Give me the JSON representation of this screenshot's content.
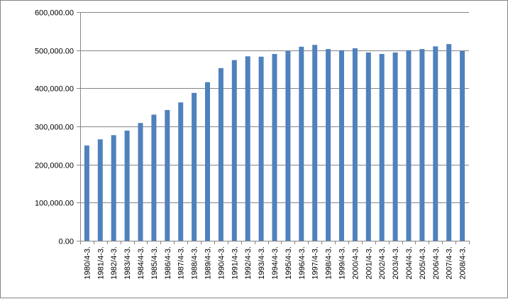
{
  "chart_data": {
    "type": "bar",
    "title": "",
    "xlabel": "",
    "ylabel": "",
    "ylim": [
      0,
      600000
    ],
    "yticks": [
      "0.00",
      "100,000.00",
      "200,000.00",
      "300,000.00",
      "400,000.00",
      "500,000.00",
      "600,000.00"
    ],
    "categories": [
      "1980/4-3.",
      "1981/4-3.",
      "1982/4-3.",
      "1983/4-3.",
      "1984/4-3.",
      "1985/4-3.",
      "1986/4-3.",
      "1987/4-3.",
      "1988/4-3.",
      "1989/4-3.",
      "1990/4-3.",
      "1991/4-3.",
      "1992/4-3.",
      "1993/4-3.",
      "1994/4-3.",
      "1995/4-3.",
      "1996/4-3.",
      "1997/4-3.",
      "1998/4-3.",
      "1999/4-3.",
      "2000/4-3.",
      "2001/4-3.",
      "2002/4-3.",
      "2003/4-3.",
      "2004/4-3.",
      "2005/4-3.",
      "2006/4-3.",
      "2007/4-3.",
      "2008/4-3."
    ],
    "values": [
      250000,
      266000,
      277000,
      289000,
      309000,
      331000,
      343000,
      363000,
      388000,
      416000,
      453000,
      474000,
      484000,
      483000,
      490000,
      498000,
      509000,
      514000,
      503000,
      500000,
      505000,
      494000,
      490000,
      494000,
      500000,
      503000,
      510000,
      516000,
      498000
    ],
    "grid": true,
    "legend": "none",
    "colors": {
      "bar": "#4F81BD",
      "grid": "#868686",
      "axis": "#868686"
    }
  }
}
